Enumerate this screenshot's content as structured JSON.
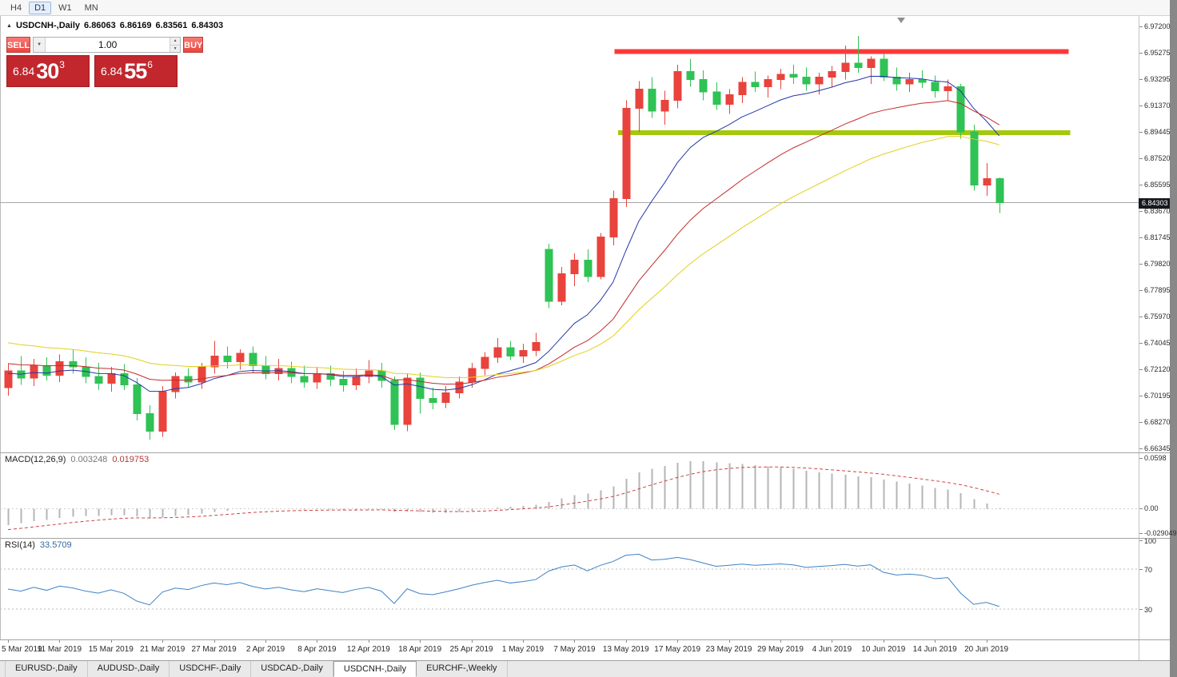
{
  "toolbar": {
    "timeframes": [
      "H4",
      "D1",
      "W1",
      "MN"
    ],
    "active": "D1"
  },
  "chart": {
    "title": "USDCNH-,Daily",
    "o": "6.86063",
    "h": "6.86169",
    "l": "6.83561",
    "c": "6.84303"
  },
  "one_click": {
    "sell_label": "SELL",
    "buy_label": "BUY",
    "volume": "1.00",
    "bid": [
      "6.84",
      "30",
      "3"
    ],
    "ask": [
      "6.84",
      "55",
      "6"
    ]
  },
  "icons": {
    "collapse": "▲",
    "up": "▲",
    "down": "▼",
    "dropdown": "▼"
  },
  "macd": {
    "title": "MACD(12,26,9)",
    "v1": "0.003248",
    "v2": "0.019753",
    "scale_labels": [
      [
        "0.0598",
        0.0598
      ],
      [
        "0.00",
        0
      ],
      [
        "-0.029049",
        -0.029049
      ]
    ]
  },
  "rsi": {
    "title": "RSI(14)",
    "value": "33.5709",
    "scale_labels": [
      [
        "100",
        100
      ],
      [
        "70",
        70
      ],
      [
        "30",
        30
      ]
    ]
  },
  "price_tag": "6.84303",
  "tabs": [
    "EURUSD-,Daily",
    "AUDUSD-,Daily",
    "USDCHF-,Daily",
    "USDCAD-,Daily",
    "USDCNH-,Daily",
    "EURCHF-,Weekly"
  ],
  "active_tab": "USDCNH-,Daily",
  "chart_data": {
    "type": "candlestick",
    "symbol": "USDCNH-",
    "timeframe": "Daily",
    "ohlc_display": {
      "open": "6.86063",
      "high": "6.86169",
      "low": "6.83561",
      "close": "6.84303"
    },
    "y_axis": {
      "max": 6.972,
      "min": 6.66345,
      "tick_labels": [
        "6.97200",
        "6.95275",
        "6.93295",
        "6.91370",
        "6.89445",
        "6.87520",
        "6.85595",
        "6.83670",
        "6.81745",
        "6.79820",
        "6.77895",
        "6.75970",
        "6.74045",
        "6.72120",
        "6.70195",
        "6.68270",
        "6.66345"
      ]
    },
    "x_ticks": [
      [
        0,
        "5 Mar 2019"
      ],
      [
        4,
        "11 Mar 2019"
      ],
      [
        8,
        "15 Mar 2019"
      ],
      [
        12,
        "21 Mar 2019"
      ],
      [
        16,
        "27 Mar 2019"
      ],
      [
        20,
        "2 Apr 2019"
      ],
      [
        24,
        "8 Apr 2019"
      ],
      [
        28,
        "12 Apr 2019"
      ],
      [
        32,
        "18 Apr 2019"
      ],
      [
        36,
        "25 Apr 2019"
      ],
      [
        40,
        "1 May 2019"
      ],
      [
        44,
        "7 May 2019"
      ],
      [
        48,
        "13 May 2019"
      ],
      [
        52,
        "17 May 2019"
      ],
      [
        56,
        "23 May 2019"
      ],
      [
        60,
        "29 May 2019"
      ],
      [
        64,
        "4 Jun 2019"
      ],
      [
        68,
        "10 Jun 2019"
      ],
      [
        72,
        "14 Jun 2019"
      ],
      [
        76,
        "20 Jun 2019"
      ]
    ],
    "style": {
      "up_color": "#e8433c",
      "down_color": "#2fc254"
    },
    "candles": [
      [
        6.708,
        6.725,
        6.702,
        6.72
      ],
      [
        6.72,
        6.731,
        6.71,
        6.715
      ],
      [
        6.715,
        6.729,
        6.709,
        6.724
      ],
      [
        6.724,
        6.73,
        6.713,
        6.717
      ],
      [
        6.717,
        6.732,
        6.712,
        6.727
      ],
      [
        6.727,
        6.736,
        6.718,
        6.723
      ],
      [
        6.723,
        6.73,
        6.711,
        6.716
      ],
      [
        6.716,
        6.726,
        6.706,
        6.711
      ],
      [
        6.711,
        6.723,
        6.705,
        6.718
      ],
      [
        6.718,
        6.725,
        6.706,
        6.71
      ],
      [
        6.71,
        6.715,
        6.684,
        6.689
      ],
      [
        6.689,
        6.695,
        6.67,
        6.676
      ],
      [
        6.676,
        6.709,
        6.672,
        6.705
      ],
      [
        6.705,
        6.719,
        6.7,
        6.716
      ],
      [
        6.716,
        6.722,
        6.708,
        6.712
      ],
      [
        6.712,
        6.726,
        6.707,
        6.723
      ],
      [
        6.723,
        6.742,
        6.718,
        6.731
      ],
      [
        6.731,
        6.738,
        6.722,
        6.727
      ],
      [
        6.727,
        6.736,
        6.721,
        6.733
      ],
      [
        6.733,
        6.738,
        6.719,
        6.724
      ],
      [
        6.724,
        6.731,
        6.714,
        6.718
      ],
      [
        6.718,
        6.729,
        6.713,
        6.722
      ],
      [
        6.722,
        6.727,
        6.711,
        6.716
      ],
      [
        6.716,
        6.724,
        6.708,
        6.712
      ],
      [
        6.712,
        6.723,
        6.707,
        6.718
      ],
      [
        6.718,
        6.724,
        6.709,
        6.714
      ],
      [
        6.714,
        6.72,
        6.705,
        6.71
      ],
      [
        6.71,
        6.722,
        6.706,
        6.716
      ],
      [
        6.716,
        6.728,
        6.711,
        6.72
      ],
      [
        6.72,
        6.726,
        6.708,
        6.713
      ],
      [
        6.713,
        6.716,
        6.677,
        6.681
      ],
      [
        6.681,
        6.718,
        6.676,
        6.715
      ],
      [
        6.715,
        6.719,
        6.689,
        6.7
      ],
      [
        6.7,
        6.708,
        6.692,
        6.697
      ],
      [
        6.697,
        6.709,
        6.693,
        6.704
      ],
      [
        6.704,
        6.716,
        6.7,
        6.712
      ],
      [
        6.712,
        6.726,
        6.708,
        6.722
      ],
      [
        6.722,
        6.734,
        6.717,
        6.73
      ],
      [
        6.73,
        6.744,
        6.726,
        6.737
      ],
      [
        6.737,
        6.742,
        6.728,
        6.731
      ],
      [
        6.731,
        6.74,
        6.726,
        6.735
      ],
      [
        6.735,
        6.748,
        6.731,
        6.741
      ],
      [
        6.809,
        6.813,
        6.766,
        6.771
      ],
      [
        6.771,
        6.796,
        6.768,
        6.791
      ],
      [
        6.791,
        6.806,
        6.782,
        6.801
      ],
      [
        6.801,
        6.809,
        6.785,
        6.789
      ],
      [
        6.789,
        6.821,
        6.787,
        6.818
      ],
      [
        6.818,
        6.852,
        6.812,
        6.846
      ],
      [
        6.846,
        6.918,
        6.84,
        6.912
      ],
      [
        6.912,
        6.932,
        6.895,
        6.926
      ],
      [
        6.926,
        6.935,
        6.905,
        6.91
      ],
      [
        6.91,
        6.925,
        6.9,
        6.918
      ],
      [
        6.918,
        6.944,
        6.912,
        6.939
      ],
      [
        6.939,
        6.948,
        6.928,
        6.933
      ],
      [
        6.933,
        6.94,
        6.918,
        6.924
      ],
      [
        6.924,
        6.931,
        6.911,
        6.915
      ],
      [
        6.915,
        6.926,
        6.908,
        6.922
      ],
      [
        6.922,
        6.935,
        6.916,
        6.931
      ],
      [
        6.931,
        6.939,
        6.924,
        6.928
      ],
      [
        6.928,
        6.936,
        6.92,
        6.933
      ],
      [
        6.933,
        6.941,
        6.926,
        6.937
      ],
      [
        6.937,
        6.944,
        6.93,
        6.935
      ],
      [
        6.935,
        6.942,
        6.925,
        6.93
      ],
      [
        6.93,
        6.938,
        6.922,
        6.935
      ],
      [
        6.935,
        6.943,
        6.928,
        6.939
      ],
      [
        6.939,
        6.958,
        6.933,
        6.945
      ],
      [
        6.945,
        6.965,
        6.938,
        6.942
      ],
      [
        6.942,
        6.95,
        6.93,
        6.948
      ],
      [
        6.948,
        6.952,
        6.932,
        6.935
      ],
      [
        6.935,
        6.942,
        6.925,
        6.93
      ],
      [
        6.93,
        6.938,
        6.924,
        6.933
      ],
      [
        6.933,
        6.94,
        6.927,
        6.931
      ],
      [
        6.931,
        6.936,
        6.92,
        6.925
      ],
      [
        6.925,
        6.933,
        6.918,
        6.928
      ],
      [
        6.928,
        6.93,
        6.89,
        6.895
      ],
      [
        6.895,
        6.9,
        6.852,
        6.856
      ],
      [
        6.856,
        6.872,
        6.848,
        6.8606
      ],
      [
        6.86063,
        6.86169,
        6.83561,
        6.84303
      ]
    ],
    "moving_averages": [
      {
        "period": 10,
        "type": "ema",
        "color": "#2438a8",
        "seed": 6.718
      },
      {
        "period": 21,
        "type": "ema",
        "color": "#c62b2b",
        "seed": 6.726
      },
      {
        "period": 34,
        "type": "ema",
        "color": "#e3cf1e",
        "seed": 6.742
      }
    ],
    "lines": [
      {
        "name": "resistance",
        "price": 6.9535,
        "color": "#fb3a3a",
        "thickness": 6,
        "from_bar": 47.1,
        "to_bar": 82.4
      },
      {
        "name": "support",
        "price": 6.8944,
        "color": "#a3c80e",
        "thickness": 6,
        "from_bar": 47.4,
        "to_bar": 82.5
      }
    ],
    "current_price": 6.84303,
    "macd": {
      "fast": 12,
      "slow": 26,
      "signal": 9,
      "range": [
        -0.0335,
        0.0655
      ],
      "seeds": {
        "fast": 6.705,
        "slow": 6.727,
        "signal": -0.026
      },
      "histogram_color": "#b5b5b5",
      "signal_color": "#cf4343"
    },
    "rsi": {
      "period": 14,
      "color": "#3f82c4",
      "range": [
        0,
        100
      ],
      "levels": [
        70,
        30
      ]
    }
  }
}
